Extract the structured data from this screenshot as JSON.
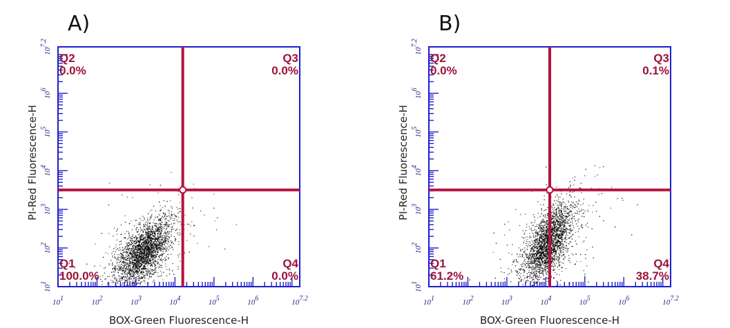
{
  "colors": {
    "gate": "#b3123f",
    "axis": "#1d1dcc",
    "quadrant_text": "#9c1238",
    "dots": "#000000"
  },
  "chart_data": [
    {
      "type": "scatter",
      "label": "A)",
      "xlabel": "BOX-Green Fluorescence-H",
      "ylabel": "PI-Red Fluorescence-H",
      "scale": "log",
      "xlim": [
        1,
        7.2
      ],
      "ylim": [
        1,
        7.2
      ],
      "x_ticks": [
        "10^1",
        "10^2",
        "10^3",
        "10^4",
        "10^5",
        "10^6",
        "10^7.2"
      ],
      "y_ticks": [
        "10^1",
        "10^2",
        "10^3",
        "10^4",
        "10^5",
        "10^6",
        "10^7.2"
      ],
      "gate": {
        "x": 4.2,
        "y": 3.5
      },
      "quadrants": [
        {
          "name": "Q1",
          "value": "100.0%"
        },
        {
          "name": "Q2",
          "value": "0.0%"
        },
        {
          "name": "Q3",
          "value": "0.0%"
        },
        {
          "name": "Q4",
          "value": "0.0%"
        }
      ],
      "population": {
        "center": [
          3.2,
          1.9
        ],
        "spread": [
          0.35,
          0.45
        ]
      }
    },
    {
      "type": "scatter",
      "label": "B)",
      "xlabel": "BOX-Green Fluorescence-H",
      "ylabel": "PI-Red Fluorescence-H",
      "scale": "log",
      "xlim": [
        1,
        7.2
      ],
      "ylim": [
        1,
        7.2
      ],
      "x_ticks": [
        "10^1",
        "10^2",
        "10^3",
        "10^4",
        "10^5",
        "10^6",
        "10^7.2"
      ],
      "y_ticks": [
        "10^1",
        "10^2",
        "10^3",
        "10^4",
        "10^5",
        "10^6",
        "10^7.2"
      ],
      "gate": {
        "x": 4.1,
        "y": 3.5
      },
      "quadrants": [
        {
          "name": "Q1",
          "value": "61.2%"
        },
        {
          "name": "Q2",
          "value": "0.0%"
        },
        {
          "name": "Q3",
          "value": "0.1%"
        },
        {
          "name": "Q4",
          "value": "38.7%"
        }
      ],
      "population": {
        "center": [
          4.05,
          2.15
        ],
        "spread": [
          0.32,
          0.5
        ]
      }
    }
  ]
}
